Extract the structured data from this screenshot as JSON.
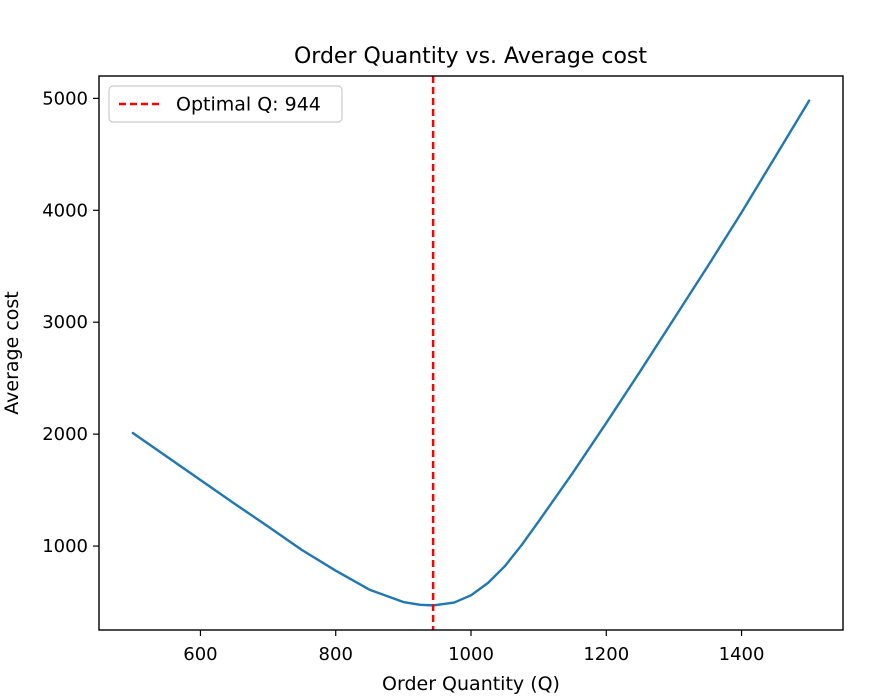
{
  "chart_data": {
    "type": "line",
    "title": "Order Quantity vs. Average cost",
    "xlabel": "Order Quantity (Q)",
    "ylabel": "Average cost",
    "xlim": [
      450,
      1550
    ],
    "ylim": [
      250,
      5200
    ],
    "x_ticks": [
      600,
      800,
      1000,
      1200,
      1400
    ],
    "y_ticks": [
      1000,
      2000,
      3000,
      4000,
      5000
    ],
    "grid": false,
    "series": [
      {
        "name": "Average cost",
        "color": "#1f77b4",
        "x": [
          500,
          550,
          600,
          650,
          700,
          750,
          800,
          850,
          900,
          925,
          944,
          975,
          1000,
          1025,
          1050,
          1075,
          1100,
          1150,
          1200,
          1250,
          1300,
          1350,
          1400,
          1450,
          1500
        ],
        "y": [
          2010,
          1800,
          1590,
          1380,
          1175,
          965,
          780,
          610,
          500,
          475,
          470,
          495,
          560,
          670,
          820,
          1010,
          1220,
          1650,
          2100,
          2560,
          3030,
          3500,
          3980,
          4480,
          4980
        ]
      }
    ],
    "vline": {
      "x": 944,
      "color": "#ff0000",
      "label": "Optimal Q: 944"
    },
    "legend": {
      "placement": "top-left",
      "entries": [
        "Optimal Q: 944"
      ]
    }
  }
}
